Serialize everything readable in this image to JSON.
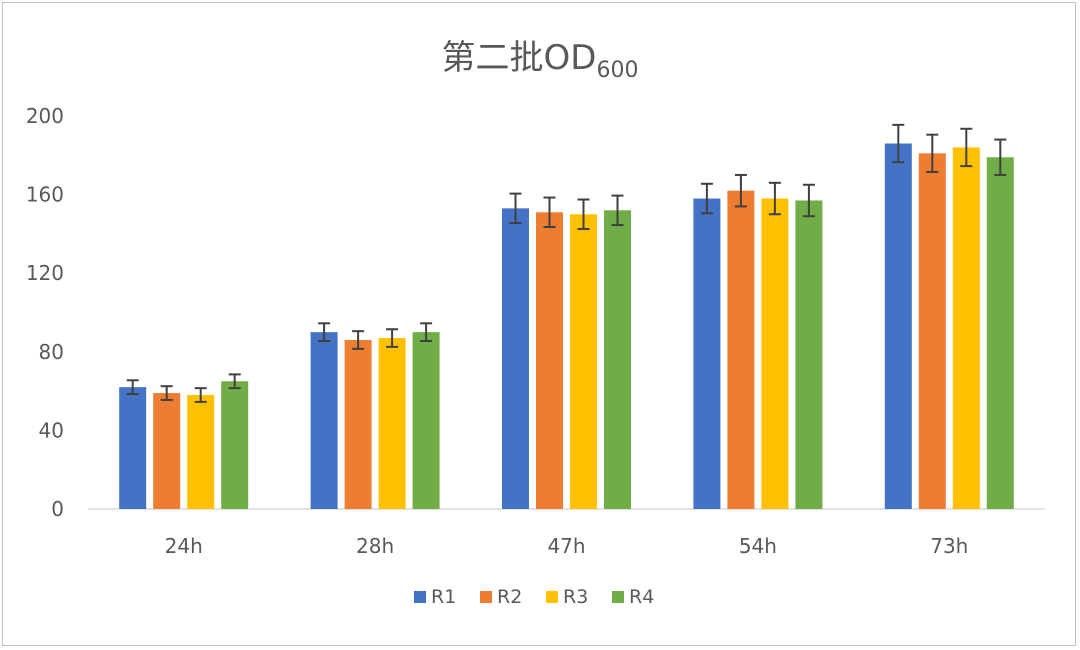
{
  "chart_data": {
    "type": "bar",
    "title": "第二批OD",
    "title_subscript": "600",
    "xlabel": "",
    "ylabel": "",
    "ylim": [
      0,
      200
    ],
    "yticks": [
      0,
      40,
      80,
      120,
      160,
      200
    ],
    "categories": [
      "24h",
      "28h",
      "47h",
      "54h",
      "73h"
    ],
    "series": [
      {
        "name": "R1",
        "color": "#4472C4",
        "values": [
          62,
          90,
          153,
          158,
          186
        ],
        "errors": [
          3.5,
          4.5,
          7.5,
          7.5,
          9.5
        ]
      },
      {
        "name": "R2",
        "color": "#ED7D31",
        "values": [
          59,
          86,
          151,
          162,
          181
        ],
        "errors": [
          3.5,
          4.5,
          7.5,
          8,
          9.5
        ]
      },
      {
        "name": "R3",
        "color": "#FFC000",
        "values": [
          58,
          87,
          150,
          158,
          184
        ],
        "errors": [
          3.5,
          4.5,
          7.5,
          8,
          9.5
        ]
      },
      {
        "name": "R4",
        "color": "#70AD47",
        "values": [
          65,
          90,
          152,
          157,
          179
        ],
        "errors": [
          3.5,
          4.5,
          7.5,
          8,
          9
        ]
      }
    ],
    "grid": false,
    "legend_position": "bottom"
  }
}
